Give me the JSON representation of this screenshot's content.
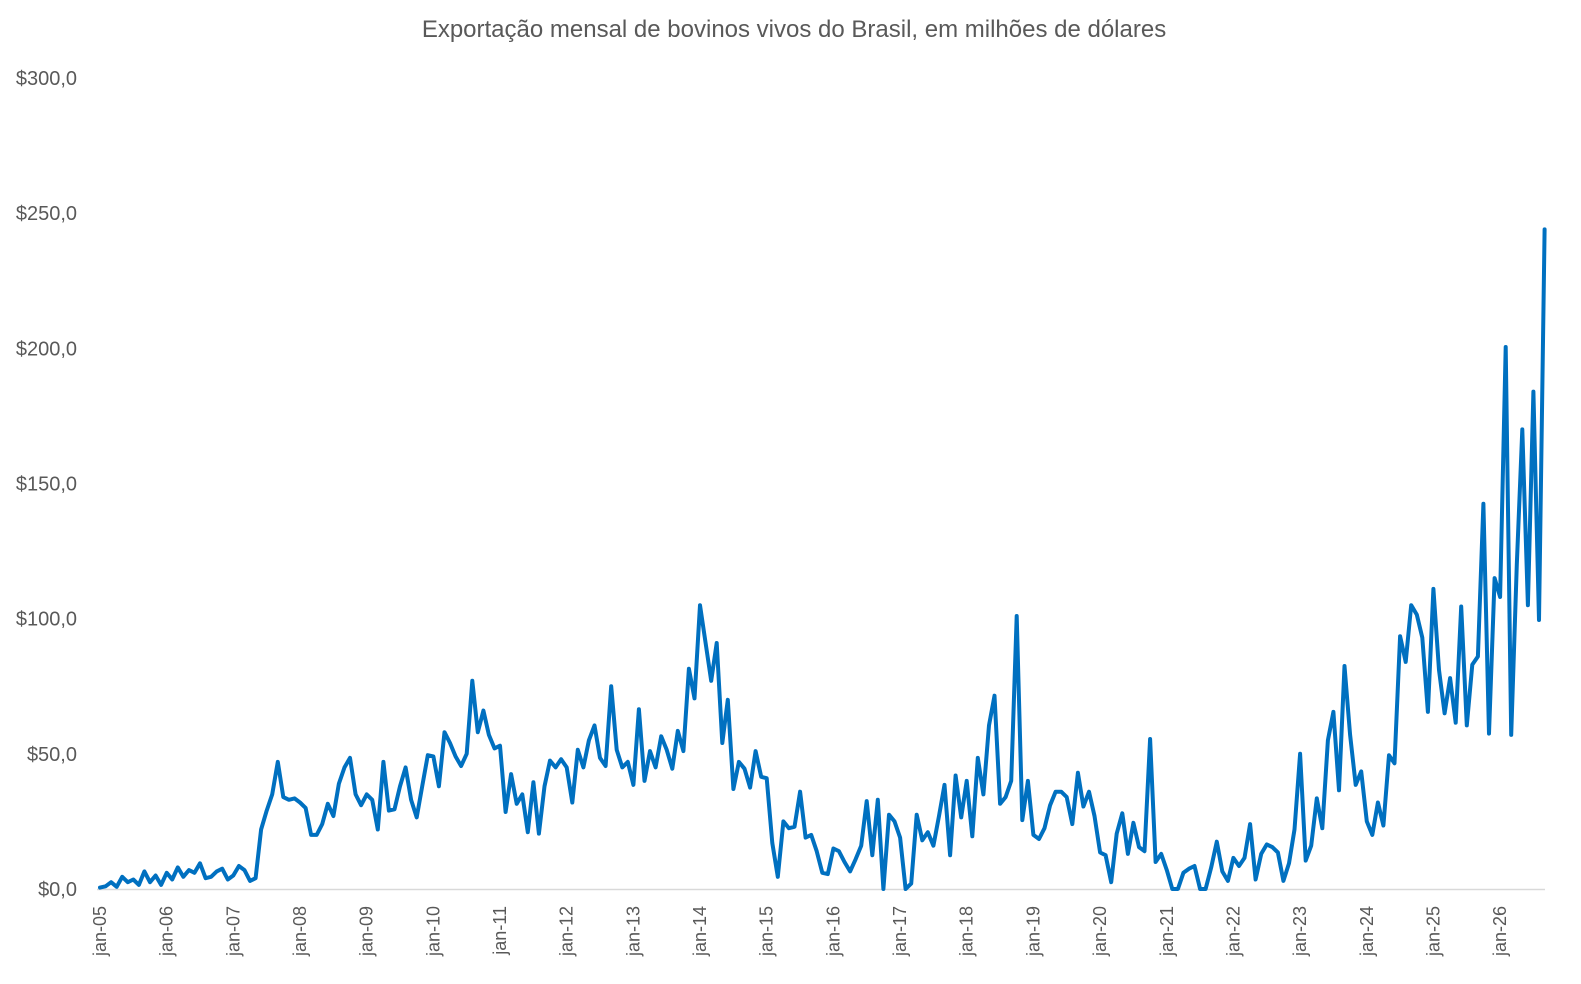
{
  "chart_data": {
    "type": "line",
    "title": "Exportação mensal de bovinos vivos do Brasil, em milhões de dólares",
    "xlabel": "",
    "ylabel": "",
    "ylim": [
      0,
      300
    ],
    "grid": false,
    "legend": "none",
    "y_ticks": [
      "$0,0",
      "$50,0",
      "$100,0",
      "$150,0",
      "$200,0",
      "$250,0",
      "$300,0"
    ],
    "y_tick_values": [
      0,
      50,
      100,
      150,
      200,
      250,
      300
    ],
    "x_ticks": [
      "jan-05",
      "jan-06",
      "jan-07",
      "jan-08",
      "jan-09",
      "jan-10",
      "jan-11",
      "jan-12",
      "jan-13",
      "jan-14",
      "jan-15",
      "jan-16",
      "jan-17",
      "jan-18",
      "jan-19",
      "jan-20",
      "jan-21",
      "jan-22",
      "jan-23",
      "jan-24",
      "jan-25",
      "jan-26"
    ],
    "x_start": "jan-05",
    "colors": {
      "line": "#0070C0",
      "axis": "#D9D9D9",
      "text": "#595959"
    },
    "series": [
      {
        "values": [
          0.5,
          1,
          2.5,
          0.8,
          4.5,
          2.5,
          3.5,
          1.5,
          6.5,
          2.5,
          5,
          1.5,
          6,
          3.5,
          8,
          4.5,
          7,
          6,
          9.5,
          4,
          4.5,
          6.5,
          7.5,
          3.5,
          5,
          8.5,
          7,
          3,
          4,
          22,
          29,
          35,
          47,
          34,
          33,
          33.5,
          32,
          30,
          20,
          20,
          24,
          31.5,
          27,
          39,
          45,
          48.5,
          35,
          31,
          35,
          33,
          22,
          47,
          29,
          29.5,
          38,
          45,
          33,
          26.5,
          38,
          49.5,
          49,
          38,
          58,
          54,
          49,
          45.5,
          50,
          77,
          58,
          66,
          57,
          52,
          53,
          28.5,
          42.5,
          31.5,
          35,
          21,
          39.5,
          20.5,
          38,
          47.5,
          45,
          48,
          45,
          32,
          51.5,
          45,
          55,
          60.5,
          48.5,
          45.5,
          75,
          51.5,
          45,
          47,
          38.5,
          66.5,
          40,
          51,
          45,
          56.5,
          51.5,
          44.5,
          58.5,
          51,
          81.5,
          70.5,
          105,
          91,
          77,
          91,
          54,
          70,
          37,
          47,
          44.5,
          37.5,
          51,
          41.5,
          41,
          17,
          4.5,
          25,
          22.5,
          23,
          36,
          19,
          20,
          14,
          6,
          5.5,
          15,
          14,
          10,
          6.5,
          11,
          16,
          32.5,
          12.5,
          33,
          0,
          27.5,
          25,
          19,
          0,
          2,
          27.5,
          18,
          21,
          16,
          27,
          38.5,
          12.5,
          42,
          26.5,
          40,
          19.5,
          48.5,
          35,
          60.5,
          71.5,
          31.5,
          34,
          40,
          101,
          25.5,
          40,
          20,
          18.5,
          22.5,
          31,
          36,
          36,
          34,
          24,
          43,
          30.5,
          36,
          27,
          13.5,
          12.5,
          2.5,
          20.5,
          28,
          13,
          24.5,
          15.5,
          14,
          55.5,
          10,
          13,
          7,
          0,
          0,
          6,
          7.5,
          8.5,
          0,
          0,
          8,
          17.5,
          6.5,
          3,
          11.5,
          8.5,
          11.5,
          24,
          3.5,
          13,
          16.5,
          15.5,
          13.5,
          3,
          9.5,
          22,
          50,
          10.5,
          16,
          33.5,
          22.5,
          55,
          65.5,
          36.5,
          82.5,
          57,
          38.5,
          43.5,
          25,
          20,
          32,
          23.5,
          49.5,
          46.5,
          93.5,
          84,
          105,
          101.5,
          93,
          65.5,
          111,
          81,
          65,
          78,
          61.5,
          104.5,
          60.5,
          83,
          86,
          142.5,
          57.5,
          115,
          108,
          200.5,
          57,
          120,
          170,
          105,
          184,
          99.5,
          244
        ]
      }
    ]
  }
}
